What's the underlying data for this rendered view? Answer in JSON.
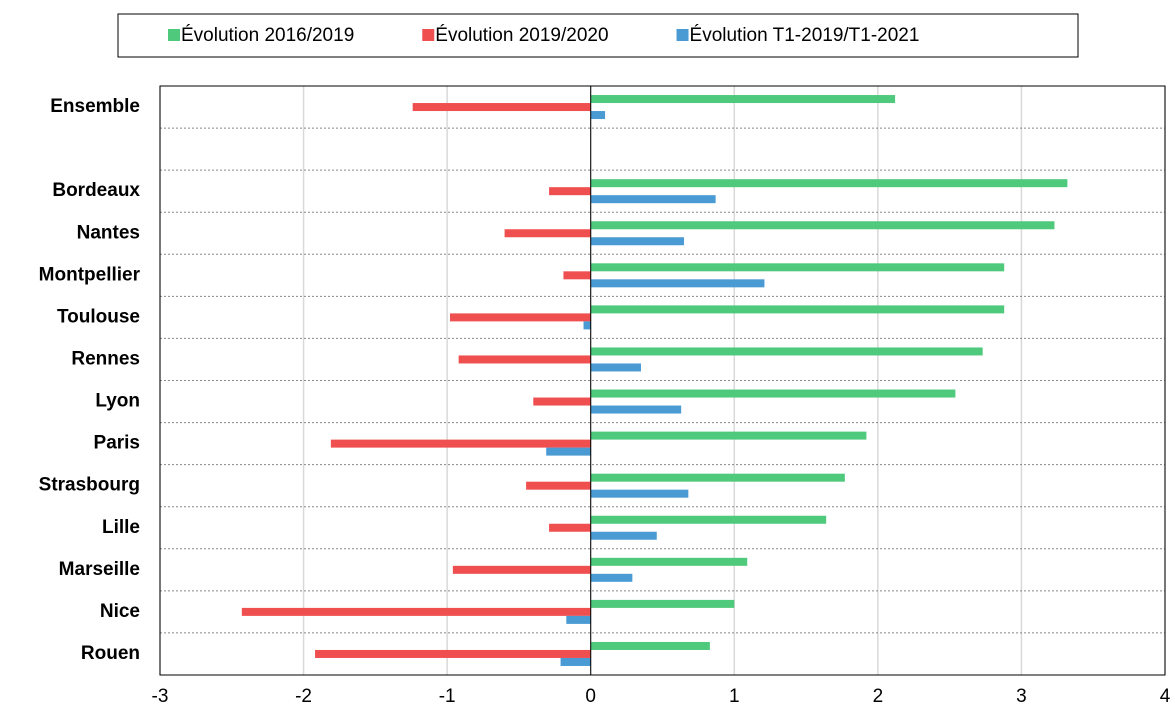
{
  "chart_data": {
    "type": "hbar",
    "categories": [
      "Ensemble",
      null,
      "Bordeaux",
      "Nantes",
      "Montpellier",
      "Toulouse",
      "Rennes",
      "Lyon",
      "Paris",
      "Strasbourg",
      "Lille",
      "Marseille",
      "Nice",
      "Rouen"
    ],
    "series": [
      {
        "name": "Évolution 2016/2019",
        "color": "#4fc97c",
        "values": [
          2.12,
          null,
          3.32,
          3.23,
          2.88,
          2.88,
          2.73,
          2.54,
          1.92,
          1.77,
          1.64,
          1.09,
          1.0,
          0.83
        ]
      },
      {
        "name": "Évolution 2019/2020",
        "color": "#f04f4f",
        "values": [
          -1.24,
          null,
          -0.29,
          -0.6,
          -0.19,
          -0.98,
          -0.92,
          -0.4,
          -1.81,
          -0.45,
          -0.29,
          -0.96,
          -2.43,
          -1.92
        ]
      },
      {
        "name": "Évolution T1-2019/T1-2021",
        "color": "#4a9ad4",
        "values": [
          0.1,
          null,
          0.87,
          0.65,
          1.21,
          -0.05,
          0.35,
          0.63,
          -0.31,
          0.68,
          0.46,
          0.29,
          -0.17,
          -0.21
        ]
      }
    ],
    "xlim": [
      -3,
      4
    ],
    "xticks": [
      -3,
      -2,
      -1,
      0,
      1,
      2,
      3,
      4
    ],
    "grid": true,
    "legend": "top"
  }
}
